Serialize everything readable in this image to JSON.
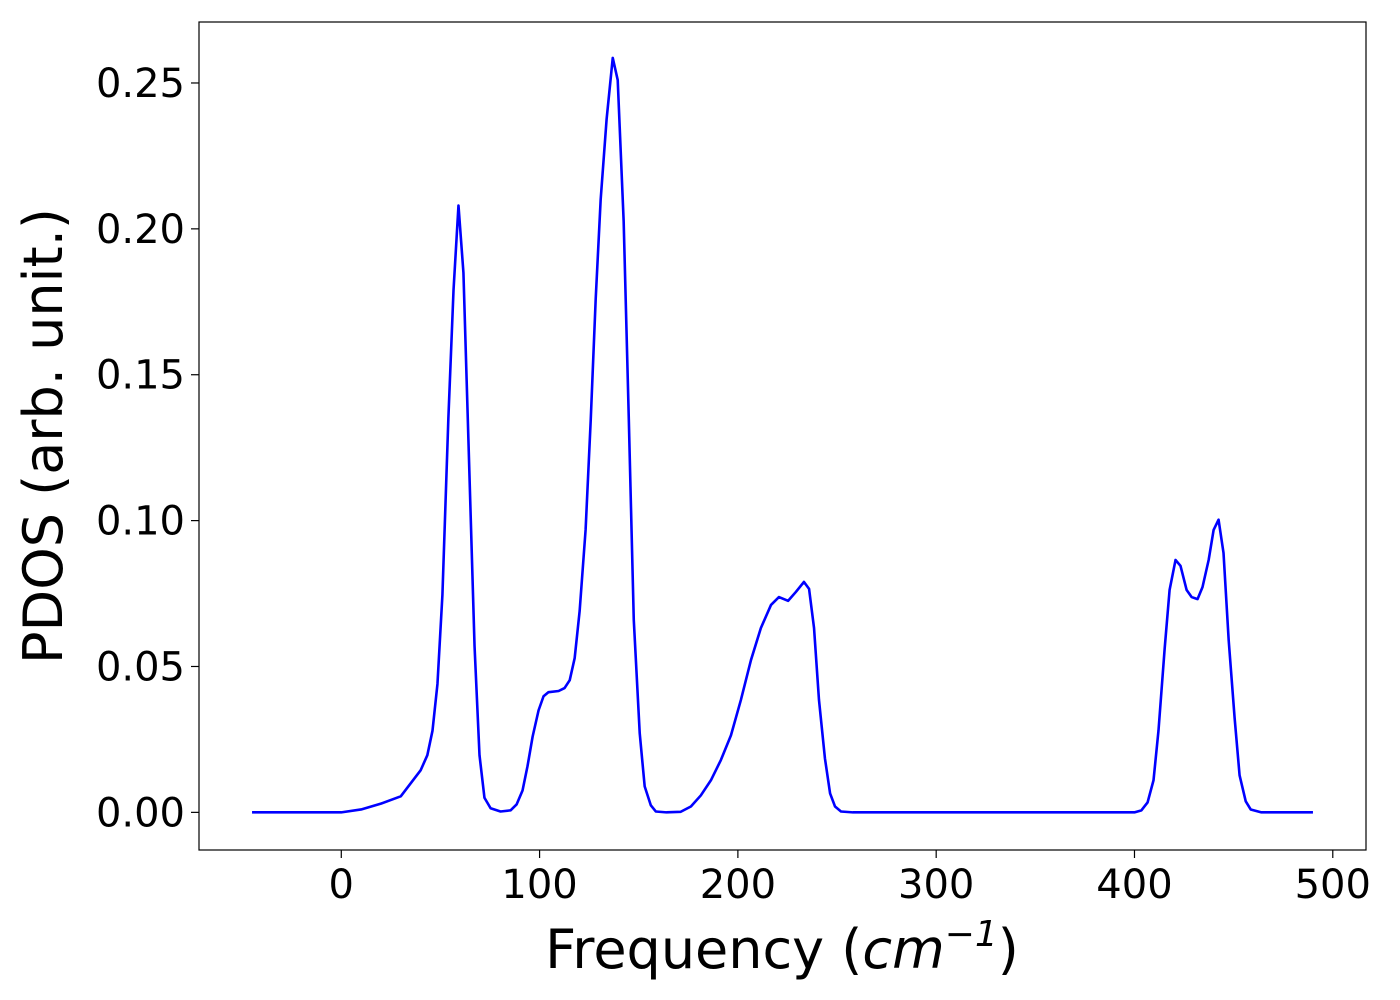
{
  "chart_data": {
    "type": "line",
    "x_label": {
      "text": "Frequency (",
      "unit": "cm",
      "exponent": "−1",
      "close": ")"
    },
    "y_label": "PDOS (arb. unit.)",
    "color": "#0000ff",
    "x": [
      -45,
      -40,
      -35,
      -30,
      -25,
      -20,
      -15,
      -10,
      -5,
      0,
      10,
      20,
      30,
      40,
      43.4,
      46,
      48.5,
      51,
      54,
      56.6,
      59.1,
      61.6,
      64.1,
      67.2,
      69.7,
      72.2,
      75.3,
      80.3,
      85.4,
      88.4,
      91.4,
      93.9,
      96.5,
      99.5,
      102,
      104.5,
      109.6,
      112.6,
      115.2,
      117.7,
      120.2,
      123.2,
      125.8,
      128.3,
      130.8,
      133.8,
      136.9,
      139.4,
      142.4,
      145,
      147.5,
      150.5,
      153,
      156.1,
      158.6,
      164,
      171.2,
      176.3,
      181.3,
      186.4,
      191.4,
      196.5,
      201.5,
      206.6,
      211.6,
      216.7,
      220.7,
      225.3,
      229.3,
      233.3,
      235.9,
      238.4,
      240.9,
      243.9,
      246.5,
      249,
      252,
      258,
      300,
      350,
      400,
      403.5,
      406.6,
      409.6,
      412.1,
      415.2,
      417.7,
      420.7,
      423.2,
      426.3,
      428.8,
      431.8,
      434.3,
      437.4,
      439.9,
      442.4,
      444.9,
      447.5,
      450.5,
      453,
      456.1,
      458.6,
      464,
      470,
      480,
      490
    ],
    "values": [
      0,
      0,
      0,
      0,
      0,
      0,
      0,
      0,
      0,
      0,
      0.001,
      0.003,
      0.0055,
      0.0144,
      0.0196,
      0.028,
      0.044,
      0.0745,
      0.135,
      0.179,
      0.208,
      0.185,
      0.128,
      0.057,
      0.0196,
      0.005,
      0.0014,
      0.0003,
      0.0007,
      0.0027,
      0.0075,
      0.0158,
      0.026,
      0.035,
      0.0398,
      0.0412,
      0.0416,
      0.0426,
      0.0453,
      0.0529,
      0.069,
      0.0968,
      0.1346,
      0.176,
      0.21,
      0.2376,
      0.2586,
      0.251,
      0.2026,
      0.1346,
      0.066,
      0.0271,
      0.0089,
      0.0024,
      0.0003,
      0,
      0.0002,
      0.002,
      0.0058,
      0.011,
      0.0179,
      0.0264,
      0.0385,
      0.0522,
      0.0632,
      0.0711,
      0.0738,
      0.0725,
      0.0756,
      0.079,
      0.0766,
      0.0632,
      0.0385,
      0.0185,
      0.0065,
      0.002,
      0.0003,
      0,
      0,
      0,
      0,
      0.0007,
      0.0034,
      0.011,
      0.028,
      0.056,
      0.0762,
      0.0865,
      0.0845,
      0.0762,
      0.0738,
      0.0731,
      0.0772,
      0.0865,
      0.0968,
      0.1003,
      0.0889,
      0.059,
      0.0323,
      0.0127,
      0.0038,
      0.001,
      0,
      0,
      0,
      0
    ],
    "xlim": [
      -71.75,
      516.75
    ],
    "ylim": [
      -0.0129,
      0.2709
    ],
    "xticks": [
      0,
      100,
      200,
      300,
      400,
      500
    ],
    "yticks": [
      {
        "value": 0,
        "label": "0.00"
      },
      {
        "value": 0.05,
        "label": "0.05"
      },
      {
        "value": 0.1,
        "label": "0.10"
      },
      {
        "value": 0.15,
        "label": "0.15"
      },
      {
        "value": 0.2,
        "label": "0.20"
      },
      {
        "value": 0.25,
        "label": "0.25"
      }
    ]
  }
}
